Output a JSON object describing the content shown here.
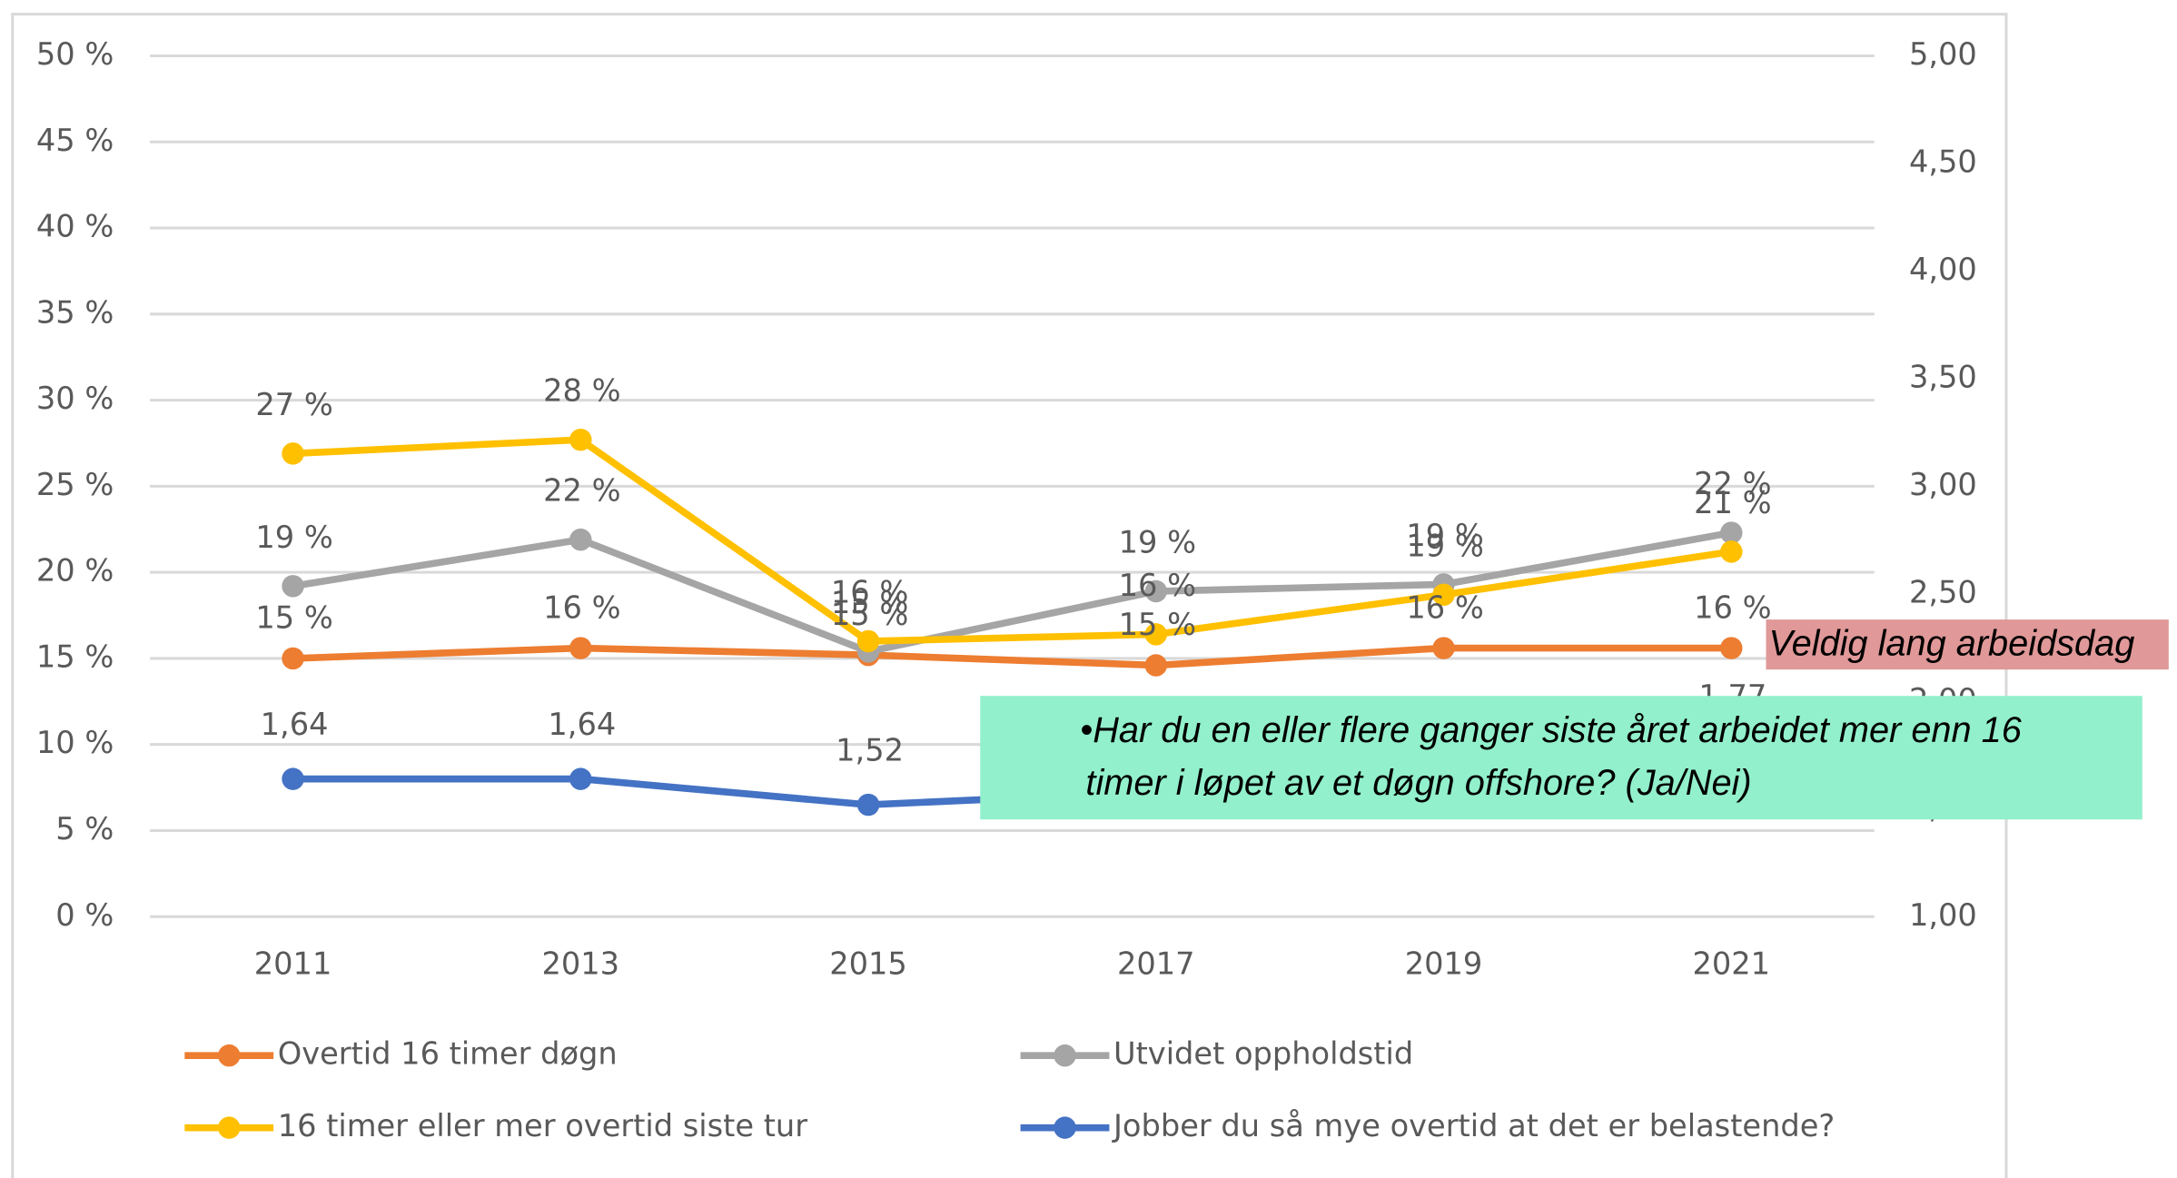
{
  "chart_data": {
    "type": "line",
    "categories": [
      "2011",
      "2013",
      "2015",
      "2017",
      "2019",
      "2021"
    ],
    "ylim": [
      0,
      50
    ],
    "yticks": [
      {
        "value": 0,
        "label": "0 %"
      },
      {
        "value": 5,
        "label": "5 %"
      },
      {
        "value": 10,
        "label": "10 %"
      },
      {
        "value": 15,
        "label": "15 %"
      },
      {
        "value": 20,
        "label": "20 %"
      },
      {
        "value": 25,
        "label": "25 %"
      },
      {
        "value": 30,
        "label": "30 %"
      },
      {
        "value": 35,
        "label": "35 %"
      },
      {
        "value": 40,
        "label": "40 %"
      },
      {
        "value": 45,
        "label": "45 %"
      },
      {
        "value": 50,
        "label": "50 %"
      }
    ],
    "y2lim": [
      1,
      5
    ],
    "y2ticks": [
      {
        "value": 1,
        "label": "1,00"
      },
      {
        "value": 1.5,
        "label": "1,50"
      },
      {
        "value": 2,
        "label": "2,00"
      },
      {
        "value": 2.5,
        "label": "2,50"
      },
      {
        "value": 3,
        "label": "3,00"
      },
      {
        "value": 3.5,
        "label": "3,50"
      },
      {
        "value": 4,
        "label": "4,00"
      },
      {
        "value": 4.5,
        "label": "4,50"
      },
      {
        "value": 5,
        "label": "5,00"
      }
    ],
    "grid": true,
    "series": [
      {
        "name": "Overtid 16 timer døgn",
        "color": "#ed7d31",
        "values": [
          15.0,
          15.6,
          15.2,
          14.6,
          15.6,
          15.6
        ],
        "value_labels": [
          "15 %",
          "16 %",
          "15 %",
          "15 %",
          "16 %",
          "16 %"
        ]
      },
      {
        "name": "Utvidet oppholdstid",
        "color": "#a5a5a5",
        "values": [
          19.2,
          21.9,
          15.4,
          18.9,
          19.3,
          22.3
        ],
        "value_labels": [
          "19 %",
          "22 %",
          "15 %",
          "19 %",
          "19 %",
          "22 %"
        ]
      },
      {
        "name": "16 timer eller mer overtid siste tur",
        "color": "#ffc000",
        "values": [
          26.9,
          27.7,
          16.0,
          16.4,
          18.7,
          21.2
        ],
        "value_labels": [
          "27 %",
          "28 %",
          "16 %",
          "16 %",
          "19 %",
          "21 %"
        ]
      },
      {
        "name": "Jobber du så mye overtid at det er belastende?",
        "color": "#4472c4",
        "axis": "y2",
        "values": [
          1.64,
          1.64,
          1.52,
          1.58,
          1.7,
          1.77
        ],
        "value_labels": [
          "1,64",
          "1,64",
          "1,52",
          null,
          null,
          "1,77"
        ]
      }
    ],
    "annotations": [
      "Veldig lang arbeidsdag",
      "•Har du en eller flere ganger siste året arbeidet mer enn 16 timer i løpet av et døgn offshore? (Ja/Nei)"
    ]
  }
}
